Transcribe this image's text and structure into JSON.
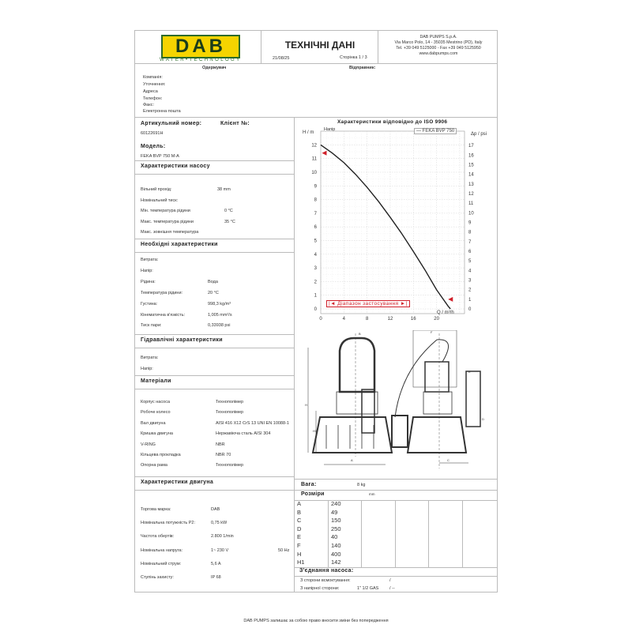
{
  "header": {
    "logo_text": "DAB",
    "logo_tagline": "WATER•TECHNOLOGY",
    "title": "ТЕХНІЧНІ ДАНІ",
    "date": "21/08/25",
    "page": "Сторінка 1 / 3",
    "company_lines": [
      "DAB PUMPS S.p.A.",
      "Via Marco Polo, 14 - 35035 Mestrino (PD), Italy",
      "Tel. +39 049 5125000 - Fax +39 049 5125950",
      "www.dabpumps.com"
    ]
  },
  "contact": {
    "recipient_label": "Одержувач",
    "sender_label": "Відправник:",
    "fields": [
      "Компанія:",
      "Уточнення:",
      "Адреса",
      "Телефон:",
      "Факс:",
      "Електронна пошта"
    ]
  },
  "article": {
    "article_label": "Артикульний номер:",
    "client_label": "Клієнт №:",
    "article_value": "60122691H",
    "model_label": "Модель:",
    "model_value": "FEKA BVP 750 M-A"
  },
  "pump_chars": {
    "title": "Характеристики насосу",
    "rows": [
      {
        "label": "Вільний прохід:",
        "value": "38 mm"
      },
      {
        "label": "Номінальний тиск:",
        "value": ""
      },
      {
        "label": "Мін. температура рідини",
        "value": "0 °C"
      },
      {
        "label": "Макс. температура рідини",
        "value": "35 °C"
      },
      {
        "label": "Макс. зовнішня температура",
        "value": ""
      }
    ]
  },
  "required_chars": {
    "title": "Необхідні характеристики",
    "rows": [
      {
        "label": "Витрата:",
        "value": ""
      },
      {
        "label": "Напір:",
        "value": ""
      },
      {
        "label": "Рідина:",
        "value": "Вода"
      },
      {
        "label": "Температура рідини:",
        "value": "20 °C"
      },
      {
        "label": "Густина:",
        "value": "998,3 kg/m³"
      },
      {
        "label": "Кінематична в'язкість:",
        "value": "1,005 mm²/s"
      },
      {
        "label": "Тиск пари:",
        "value": "0,33938 psi"
      }
    ]
  },
  "hydraulic_chars": {
    "title": "Гідравлічні характеристики",
    "rows": [
      {
        "label": "Витрата:",
        "value": ""
      },
      {
        "label": "Напір:",
        "value": ""
      }
    ]
  },
  "materials": {
    "title": "Матеріали",
    "rows": [
      {
        "label": "Корпус насоса",
        "value": "Технополімер"
      },
      {
        "label": "Робоче колесо",
        "value": "Технополімер"
      },
      {
        "label": "Вал двигуна",
        "value": "AISI 416 X12 CrS 13 UNI EN 10088-1"
      },
      {
        "label": "Кришка двигуна",
        "value": "Нержавіюча сталь AISI 304"
      },
      {
        "label": "V-RING",
        "value": "NBR"
      },
      {
        "label": "Кільцева прокладка",
        "value": "NBR 70"
      },
      {
        "label": "Опорна рама",
        "value": "Технополімер"
      }
    ]
  },
  "motor_chars": {
    "title": "Характеристики двигуна",
    "rows": [
      {
        "label": "Торгова марка:",
        "value": "DAB",
        "extra": ""
      },
      {
        "label": "Номінальна потужність P2:",
        "value": "0,75 kW",
        "extra": ""
      },
      {
        "label": "Частота обертів:",
        "value": "2.800 1/min",
        "extra": ""
      },
      {
        "label": "Номінальна напруга:",
        "value": "1~    230 V",
        "extra": "50 Hz"
      },
      {
        "label": "Номінальний струм:",
        "value": "5,6 A",
        "extra": ""
      },
      {
        "label": "Ступінь захисту:",
        "value": "IP 68",
        "extra": ""
      }
    ]
  },
  "chart_data": {
    "type": "line",
    "title": "Характеристики відповідно до ISO 9906",
    "xlabel": "Q / m³/h",
    "ylabel": "H / m",
    "y2label": "Δp / psi",
    "corner_label": "Напір",
    "xlim": [
      0,
      24
    ],
    "ylim": [
      0,
      12.8
    ],
    "y2lim": [
      0,
      18.2
    ],
    "xticks": [
      0,
      4,
      8,
      12,
      16,
      20
    ],
    "yticks": [
      0,
      1,
      2,
      3,
      4,
      5,
      6,
      7,
      8,
      9,
      10,
      11,
      12
    ],
    "y2ticks": [
      0,
      1,
      2,
      3,
      4,
      5,
      6,
      7,
      8,
      9,
      10,
      11,
      12,
      13,
      14,
      15,
      16,
      17
    ],
    "grid": true,
    "legend": "top-right",
    "series": [
      {
        "name": "FEKA BVP 750",
        "color": "#222222",
        "x": [
          0,
          2,
          4,
          6,
          8,
          10,
          12,
          14,
          16,
          18,
          20,
          22,
          22.4
        ],
        "y": [
          12,
          11.4,
          10.7,
          9.85,
          8.9,
          7.85,
          6.7,
          5.5,
          4.2,
          2.85,
          1.4,
          0.2,
          0
        ]
      }
    ],
    "range_markers": [
      {
        "x": 0.2,
        "y": 11.4
      },
      {
        "x": 22,
        "y": 0.7
      }
    ],
    "range_label": "Діапазон застосування",
    "accent_color": "#d0202a"
  },
  "weight": {
    "label": "Вага:",
    "value": "8 kg"
  },
  "dimensions": {
    "label": "Розміри",
    "unit": "mm",
    "rows": [
      {
        "key": "A",
        "value": "240"
      },
      {
        "key": "B",
        "value": "49"
      },
      {
        "key": "C",
        "value": "150"
      },
      {
        "key": "D",
        "value": "250"
      },
      {
        "key": "E",
        "value": "40"
      },
      {
        "key": "F",
        "value": "140"
      },
      {
        "key": "H",
        "value": "400"
      },
      {
        "key": "H1",
        "value": "142"
      }
    ]
  },
  "connections": {
    "title": "З'єднання насоса:",
    "rows": [
      {
        "label": "З сторони всмоктування:",
        "value": "",
        "extra": "/"
      },
      {
        "label": "З напірної сторони:",
        "value": "1\" 1/2 GAS",
        "extra": "/ --"
      }
    ]
  },
  "drawing_labels": {
    "a": "A",
    "b": "B",
    "c": "C",
    "e": "E",
    "f": "F",
    "h": "H",
    "h1": "H1",
    "d": "D"
  },
  "footer": "DAB PUMPS залишає за собою право вносити зміни без попередження",
  "colors": {
    "logo_yellow": "#f5d400",
    "logo_green": "#2d6b2a",
    "accent_red": "#d0202a"
  }
}
